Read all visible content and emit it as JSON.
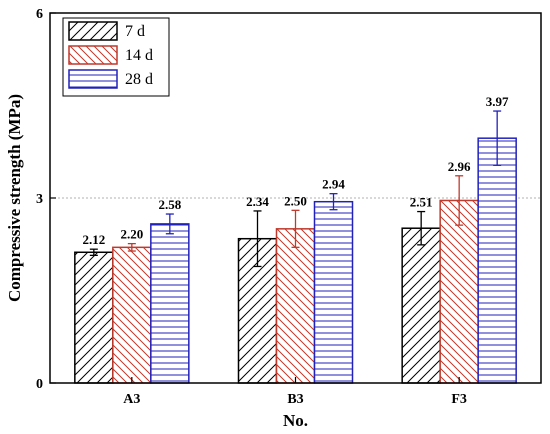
{
  "chart_data": {
    "type": "bar",
    "title": "",
    "xlabel": "No.",
    "ylabel": "Compressive strength (MPa)",
    "categories": [
      "A3",
      "B3",
      "F3"
    ],
    "ylim": [
      0,
      6
    ],
    "yticks": [
      "0",
      "3",
      "6"
    ],
    "reference_line": {
      "y": 3,
      "style": "dashed"
    },
    "legend_position": "top-left",
    "series": [
      {
        "name": "7 d",
        "color": "#000000",
        "pattern": "diagonal-up",
        "values": [
          2.12,
          2.34,
          2.51
        ],
        "labels": [
          "2.12",
          "2.34",
          "2.51"
        ],
        "errors": [
          0.05,
          0.45,
          0.27
        ]
      },
      {
        "name": "14 d",
        "color": "#c0392b",
        "pattern": "diagonal-down",
        "values": [
          2.2,
          2.5,
          2.96
        ],
        "labels": [
          "2.20",
          "2.50",
          "2.96"
        ],
        "errors": [
          0.06,
          0.3,
          0.4
        ]
      },
      {
        "name": "28 d",
        "color": "#2222bb",
        "pattern": "horizontal",
        "values": [
          2.58,
          2.94,
          3.97
        ],
        "labels": [
          "2.58",
          "2.94",
          "3.97"
        ],
        "errors": [
          0.16,
          0.13,
          0.44
        ]
      }
    ]
  }
}
